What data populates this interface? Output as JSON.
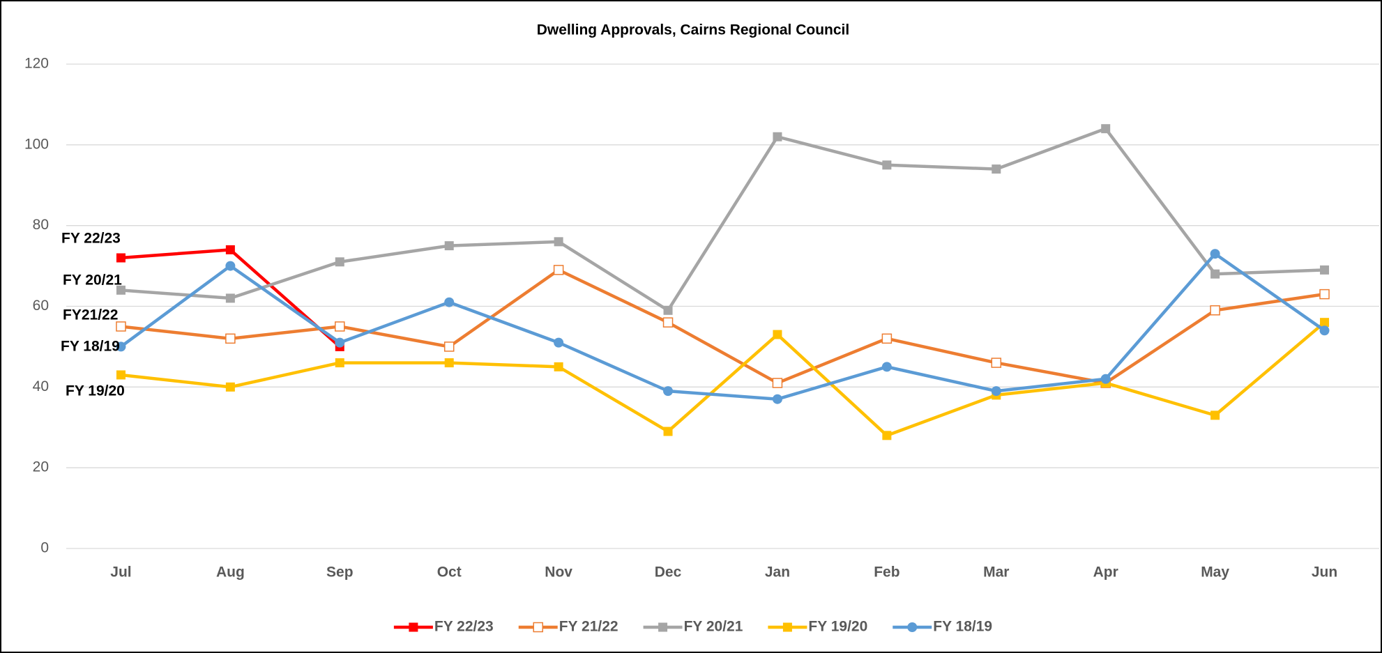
{
  "chart_data": {
    "type": "line",
    "title": "Dwelling Approvals, Cairns Regional Council",
    "categories": [
      "Jul",
      "Aug",
      "Sep",
      "Oct",
      "Nov",
      "Dec",
      "Jan",
      "Feb",
      "Mar",
      "Apr",
      "May",
      "Jun"
    ],
    "series": [
      {
        "name": "FY 22/23",
        "color": "#ff0000",
        "marker": "square",
        "values": [
          72,
          74,
          50,
          null,
          null,
          null,
          null,
          null,
          null,
          null,
          null,
          null
        ]
      },
      {
        "name": "FY 21/22",
        "color": "#ed7d31",
        "marker": "square-open",
        "values": [
          55,
          52,
          55,
          50,
          69,
          56,
          41,
          52,
          46,
          41,
          59,
          63
        ]
      },
      {
        "name": "FY 20/21",
        "color": "#a5a5a5",
        "marker": "square",
        "values": [
          64,
          62,
          71,
          75,
          76,
          59,
          102,
          95,
          94,
          104,
          68,
          69
        ]
      },
      {
        "name": "FY 19/20",
        "color": "#ffc000",
        "marker": "square",
        "values": [
          43,
          40,
          46,
          46,
          45,
          29,
          53,
          28,
          38,
          41,
          33,
          56
        ]
      },
      {
        "name": "FY 18/19",
        "color": "#5b9bd5",
        "marker": "circle",
        "values": [
          50,
          70,
          51,
          61,
          51,
          39,
          37,
          45,
          39,
          42,
          73,
          54
        ]
      }
    ],
    "annotations": [
      "FY 22/23",
      "FY 20/21",
      "FY21/22",
      "FY 18/19",
      "FY 19/20"
    ],
    "ylim": [
      0,
      120
    ],
    "yticks": [
      0,
      20,
      40,
      60,
      80,
      100,
      120
    ],
    "grid": true,
    "legend": "bottom"
  }
}
